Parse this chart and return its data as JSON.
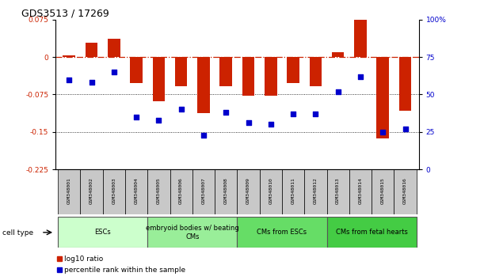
{
  "title": "GDS3513 / 17269",
  "samples": [
    "GSM348001",
    "GSM348002",
    "GSM348003",
    "GSM348004",
    "GSM348005",
    "GSM348006",
    "GSM348007",
    "GSM348008",
    "GSM348009",
    "GSM348010",
    "GSM348011",
    "GSM348012",
    "GSM348013",
    "GSM348014",
    "GSM348015",
    "GSM348016"
  ],
  "log10_ratio": [
    0.003,
    0.028,
    0.036,
    -0.052,
    -0.088,
    -0.058,
    -0.113,
    -0.058,
    -0.078,
    -0.078,
    -0.052,
    -0.058,
    0.01,
    0.083,
    -0.163,
    -0.108
  ],
  "percentile_rank": [
    60,
    58,
    65,
    35,
    33,
    40,
    23,
    38,
    31,
    30,
    37,
    37,
    52,
    62,
    25,
    27
  ],
  "ylim_left": [
    -0.225,
    0.075
  ],
  "ylim_right": [
    0,
    100
  ],
  "yticks_left": [
    0.075,
    0.0,
    -0.075,
    -0.15,
    -0.225
  ],
  "yticks_right": [
    100,
    75,
    50,
    25,
    0
  ],
  "cell_type_groups": [
    {
      "label": "ESCs",
      "start": 0,
      "end": 3,
      "color": "#ccffcc"
    },
    {
      "label": "embryoid bodies w/ beating\nCMs",
      "start": 4,
      "end": 7,
      "color": "#99ee99"
    },
    {
      "label": "CMs from ESCs",
      "start": 8,
      "end": 11,
      "color": "#66dd66"
    },
    {
      "label": "CMs from fetal hearts",
      "start": 12,
      "end": 15,
      "color": "#44cc44"
    }
  ],
  "bar_color": "#cc2200",
  "dot_color": "#0000cc",
  "zero_line_color": "#cc2200",
  "hline_color": "#333333",
  "cell_type_label": "cell type"
}
